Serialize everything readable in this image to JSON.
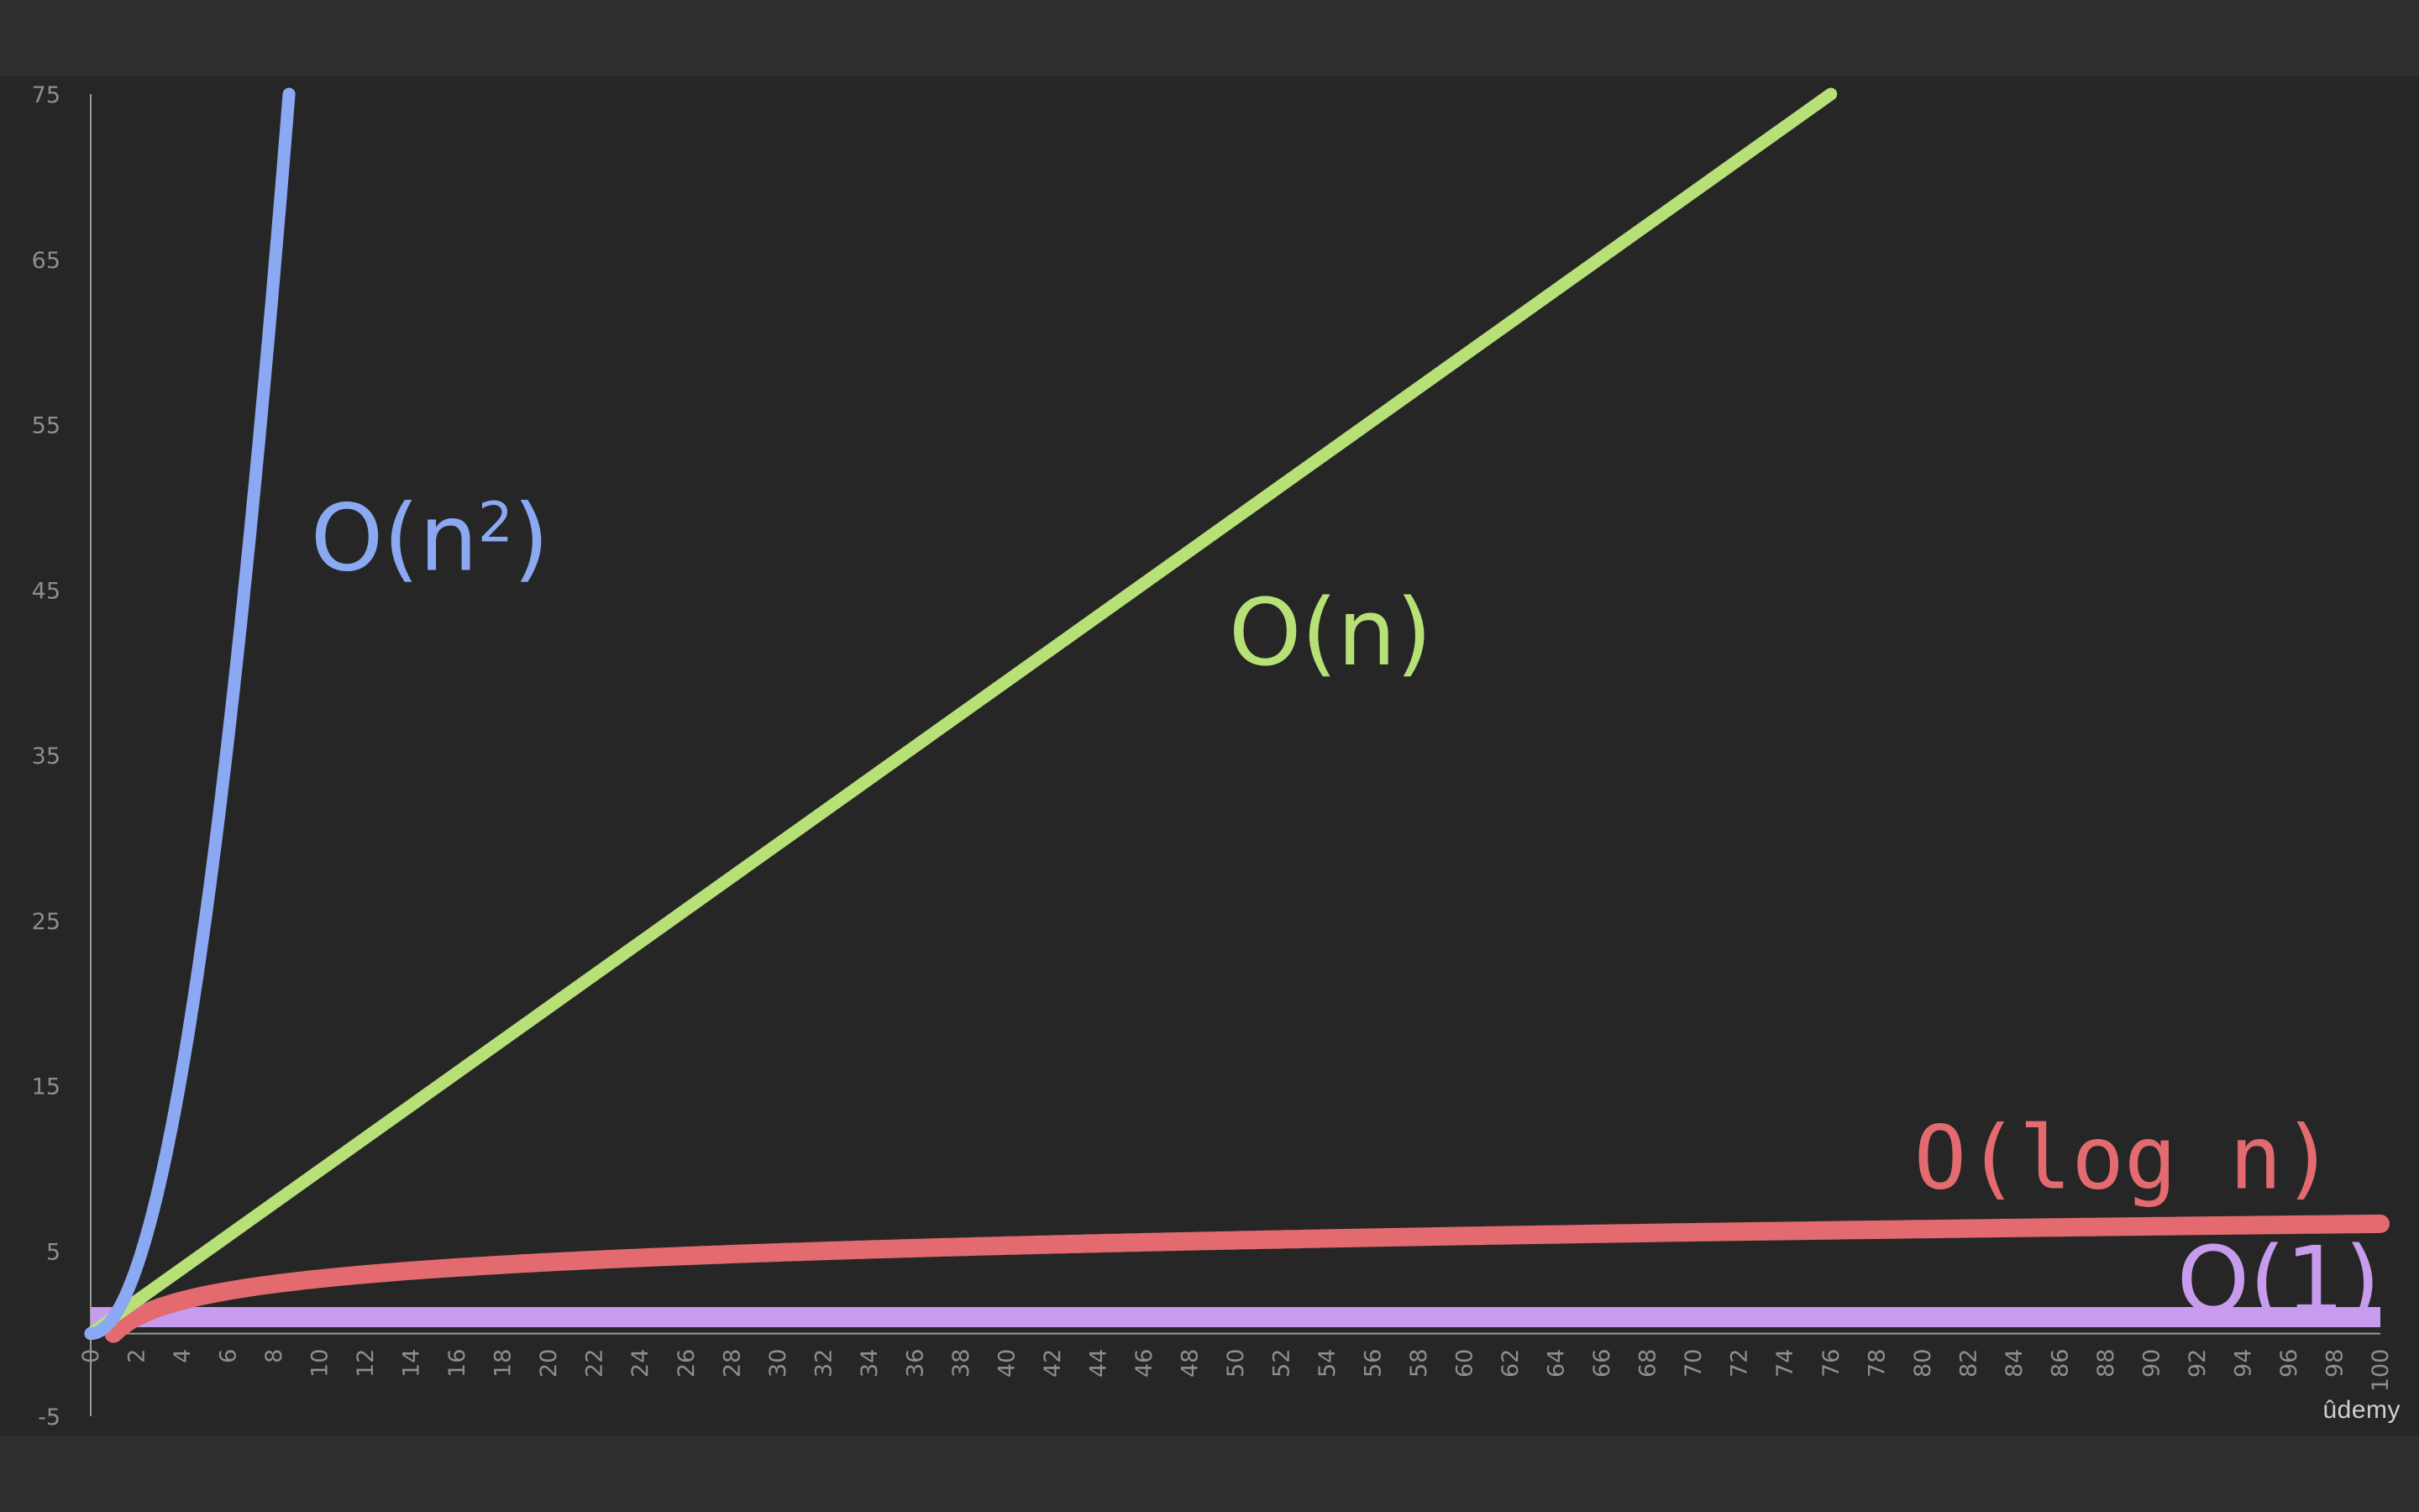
{
  "watermark": "ûdemy",
  "chart_data": {
    "type": "line",
    "xlim": [
      0,
      100
    ],
    "ylim": [
      -5,
      75
    ],
    "yticks": [
      -5,
      5,
      15,
      25,
      35,
      45,
      55,
      65,
      75
    ],
    "xticks": [
      0,
      2,
      4,
      6,
      8,
      10,
      12,
      14,
      16,
      18,
      20,
      22,
      24,
      26,
      28,
      30,
      32,
      34,
      36,
      38,
      40,
      42,
      44,
      46,
      48,
      50,
      52,
      54,
      56,
      58,
      60,
      62,
      64,
      66,
      68,
      70,
      72,
      74,
      76,
      78,
      80,
      82,
      84,
      86,
      88,
      90,
      92,
      94,
      96,
      98,
      100
    ],
    "grid": false,
    "series": [
      {
        "name": "O(n²)",
        "label_base": "O(n",
        "label_sup": "2",
        "label_close": ")",
        "color": "#8aa9f2",
        "x": [
          0,
          1,
          2,
          3,
          4,
          5,
          6,
          7,
          8,
          8.66
        ],
        "y": [
          0,
          1,
          4,
          9,
          16,
          25,
          36,
          49,
          64,
          75
        ]
      },
      {
        "name": "O(n)",
        "color": "#b7e177",
        "x": [
          0,
          76
        ],
        "y": [
          0,
          75
        ]
      },
      {
        "name": "O(log n)",
        "color": "#e36b70",
        "x": [
          1,
          2,
          4,
          8,
          16,
          32,
          64,
          100
        ],
        "y": [
          0,
          1,
          2,
          3,
          4,
          5,
          6,
          6.64
        ]
      },
      {
        "name": "O(1)",
        "color": "#c79cee",
        "x": [
          0,
          100
        ],
        "y": [
          1,
          1
        ]
      }
    ]
  }
}
